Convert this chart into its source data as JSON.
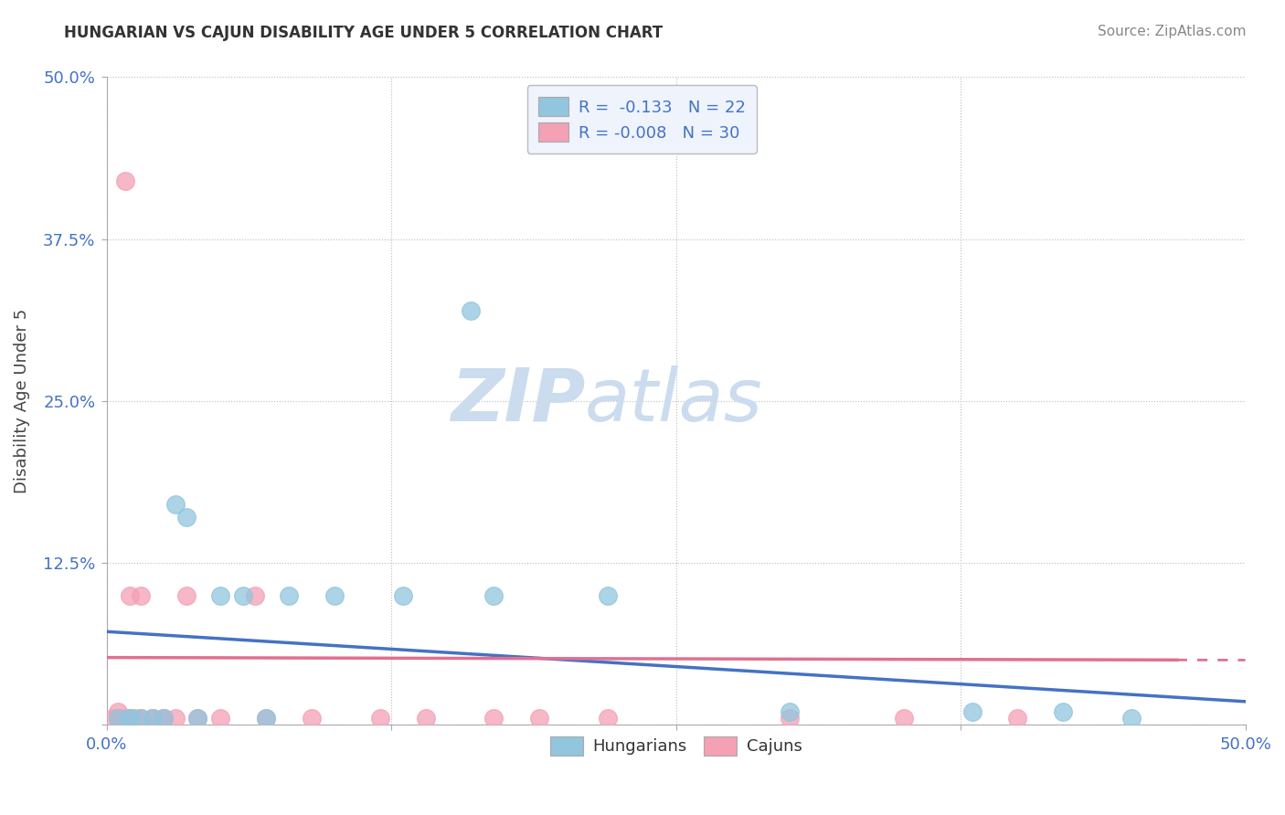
{
  "title": "HUNGARIAN VS CAJUN DISABILITY AGE UNDER 5 CORRELATION CHART",
  "source": "Source: ZipAtlas.com",
  "ylabel": "Disability Age Under 5",
  "xlim": [
    0,
    0.5
  ],
  "ylim": [
    0,
    0.5
  ],
  "xticks": [
    0.0,
    0.125,
    0.25,
    0.375,
    0.5
  ],
  "yticks": [
    0.0,
    0.125,
    0.25,
    0.375,
    0.5
  ],
  "xticklabels": [
    "0.0%",
    "",
    "",
    "",
    "50.0%"
  ],
  "yticklabels": [
    "",
    "12.5%",
    "25.0%",
    "37.5%",
    "50.0%"
  ],
  "hungarian_color": "#92c5de",
  "cajun_color": "#f4a0b5",
  "hungarian_R": -0.133,
  "hungarian_N": 22,
  "cajun_R": -0.008,
  "cajun_N": 30,
  "hungarian_x": [
    0.005,
    0.01,
    0.01,
    0.015,
    0.02,
    0.025,
    0.03,
    0.035,
    0.04,
    0.05,
    0.06,
    0.07,
    0.08,
    0.1,
    0.13,
    0.16,
    0.17,
    0.22,
    0.3,
    0.38,
    0.42,
    0.45
  ],
  "hungarian_y": [
    0.005,
    0.005,
    0.005,
    0.005,
    0.005,
    0.005,
    0.17,
    0.16,
    0.005,
    0.1,
    0.1,
    0.005,
    0.1,
    0.1,
    0.1,
    0.32,
    0.1,
    0.1,
    0.01,
    0.01,
    0.01,
    0.005
  ],
  "cajun_x": [
    0.003,
    0.005,
    0.005,
    0.007,
    0.008,
    0.01,
    0.01,
    0.01,
    0.012,
    0.015,
    0.015,
    0.02,
    0.02,
    0.025,
    0.025,
    0.03,
    0.035,
    0.04,
    0.05,
    0.065,
    0.07,
    0.09,
    0.12,
    0.14,
    0.17,
    0.19,
    0.22,
    0.3,
    0.35,
    0.4
  ],
  "cajun_y": [
    0.005,
    0.005,
    0.01,
    0.005,
    0.42,
    0.005,
    0.1,
    0.005,
    0.005,
    0.005,
    0.1,
    0.005,
    0.005,
    0.005,
    0.005,
    0.005,
    0.1,
    0.005,
    0.005,
    0.1,
    0.005,
    0.005,
    0.005,
    0.005,
    0.005,
    0.005,
    0.005,
    0.005,
    0.005,
    0.005
  ],
  "background_color": "#ffffff",
  "watermark_zip": "ZIP",
  "watermark_atlas": "atlas",
  "watermark_color": "#ccdcef",
  "hungarian_line_start": 0.072,
  "hungarian_line_end": 0.018,
  "cajun_line_start": 0.052,
  "cajun_line_end": 0.05,
  "legend_box_color": "#eef3fc",
  "legend_border_color": "#bbbbbb",
  "tick_color": "#4472c4",
  "title_color": "#333333",
  "source_color": "#888888"
}
